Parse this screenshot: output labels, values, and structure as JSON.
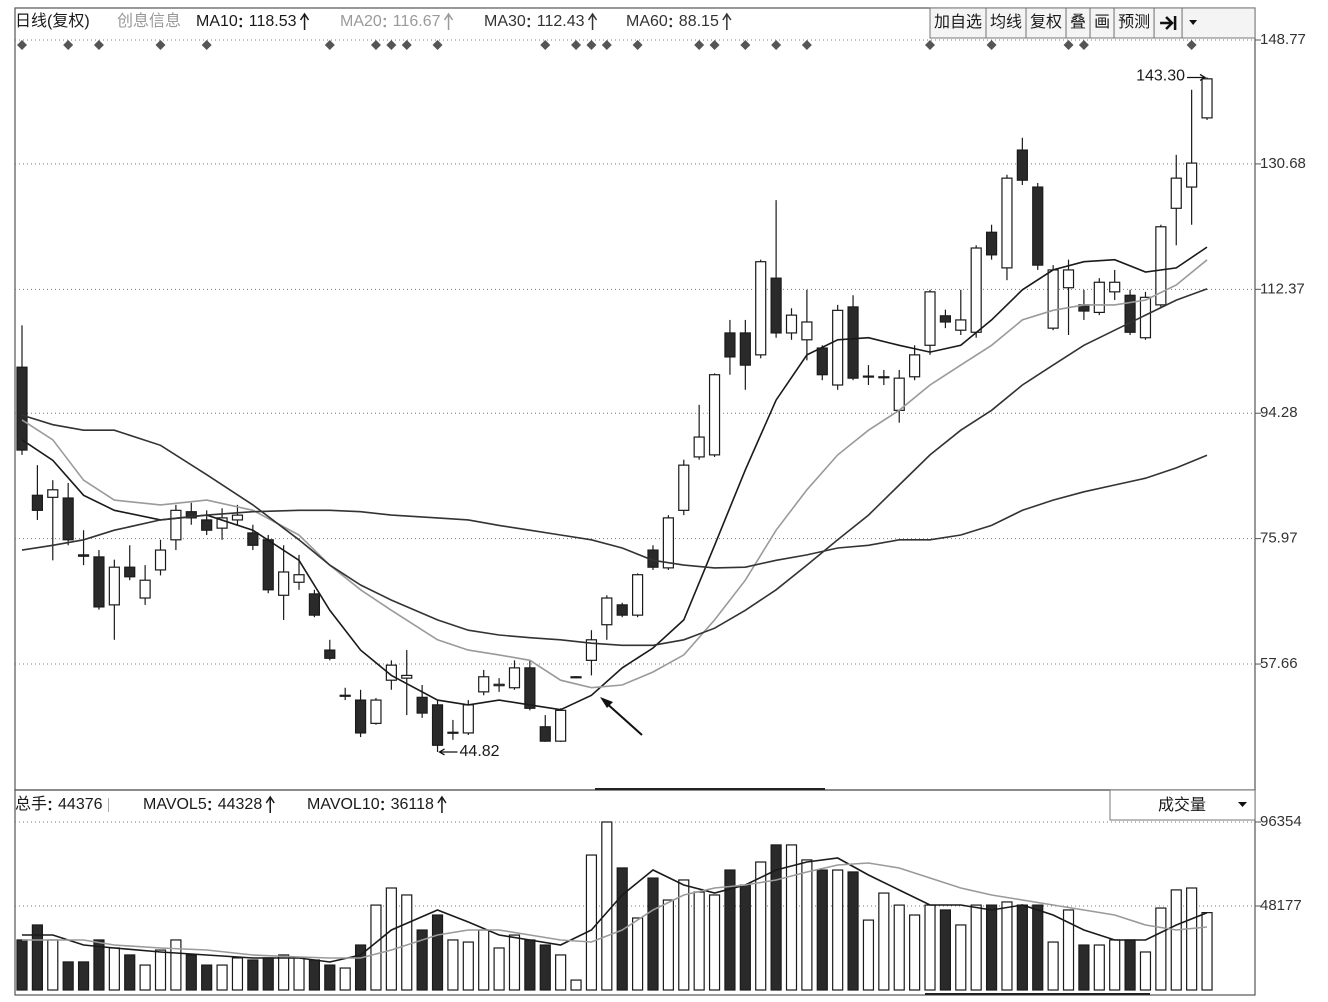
{
  "chart_data": {
    "type": "candlestick",
    "period_label": "日线(复权)",
    "info_label": "创息信息",
    "toolbar": [
      "加自选",
      "均线",
      "复权",
      "叠",
      "画",
      "预测"
    ],
    "open": [
      101.0,
      82.3,
      82.0,
      81.9,
      73.6,
      73.3,
      66.3,
      71.8,
      67.3,
      71.4,
      75.8,
      79.9,
      78.7,
      77.5,
      78.7,
      76.8,
      75.8,
      67.7,
      69.6,
      67.9,
      59.7,
      53.1,
      52.4,
      49.0,
      55.3,
      55.6,
      52.8,
      51.7,
      47.6,
      47.6,
      53.6,
      54.5,
      54.2,
      57.1,
      48.5,
      46.4,
      55.8,
      58.2,
      63.4,
      66.3,
      64.8,
      74.3,
      71.7,
      80.1,
      87.9,
      88.2,
      106.0,
      106.0,
      102.8,
      114.0,
      106.0,
      105.0,
      103.8,
      98.4,
      109.8,
      99.6,
      99.6,
      94.7,
      99.6,
      104.2,
      108.5,
      106.4,
      106.1,
      120.7,
      115.5,
      132.7,
      127.3,
      106.7,
      112.6,
      110.1,
      109.0,
      112.0,
      111.5,
      105.3,
      110.1,
      124.2,
      127.3,
      137.4
    ],
    "high": [
      107.1,
      86.7,
      84.5,
      84.1,
      77.2,
      74.3,
      72.9,
      75.0,
      72.1,
      75.8,
      80.9,
      81.2,
      80.1,
      80.4,
      80.9,
      78.0,
      76.5,
      75.0,
      73.6,
      68.5,
      61.2,
      54.2,
      53.9,
      52.7,
      58.2,
      59.7,
      54.6,
      52.4,
      49.5,
      52.4,
      56.8,
      55.6,
      58.2,
      58.2,
      50.2,
      51.2,
      55.9,
      62.6,
      67.7,
      66.6,
      70.9,
      75.0,
      79.4,
      87.5,
      95.5,
      100.1,
      107.9,
      107.9,
      116.7,
      125.4,
      109.6,
      112.3,
      104.2,
      110.1,
      111.5,
      101.3,
      100.6,
      100.6,
      104.2,
      112.3,
      109.4,
      112.3,
      118.8,
      121.8,
      129.1,
      134.5,
      127.9,
      115.9,
      116.7,
      112.3,
      114.0,
      115.2,
      112.3,
      112.0,
      121.8,
      132.0,
      141.5,
      143.3
    ],
    "low": [
      88.2,
      78.7,
      72.8,
      75.0,
      72.1,
      65.6,
      61.2,
      69.9,
      66.3,
      70.6,
      74.3,
      78.0,
      76.5,
      75.8,
      78.0,
      74.3,
      68.0,
      64.1,
      68.5,
      64.5,
      58.2,
      52.4,
      47.0,
      48.8,
      53.9,
      50.2,
      49.8,
      44.82,
      46.6,
      47.3,
      53.1,
      53.6,
      53.9,
      50.9,
      46.3,
      46.3,
      55.6,
      56.0,
      61.2,
      64.5,
      64.5,
      71.4,
      71.4,
      79.4,
      87.5,
      87.9,
      99.9,
      97.7,
      102.3,
      105.3,
      105.0,
      102.0,
      99.1,
      97.7,
      99.1,
      98.4,
      98.4,
      92.9,
      99.1,
      102.8,
      106.7,
      105.7,
      105.3,
      116.7,
      113.7,
      127.6,
      115.2,
      106.4,
      105.7,
      107.9,
      108.6,
      110.8,
      105.7,
      105.0,
      109.6,
      118.8,
      121.8,
      137.1
    ],
    "close": [
      88.9,
      80.1,
      83.1,
      75.8,
      73.4,
      66.0,
      71.8,
      70.4,
      69.9,
      74.3,
      80.1,
      79.0,
      77.2,
      79.0,
      79.4,
      75.0,
      68.5,
      71.1,
      70.7,
      64.8,
      58.5,
      53.1,
      47.6,
      52.4,
      57.5,
      56.0,
      50.5,
      45.8,
      47.7,
      51.7,
      55.8,
      54.7,
      57.1,
      51.2,
      46.4,
      50.9,
      55.8,
      61.2,
      67.3,
      64.8,
      70.7,
      71.8,
      79.0,
      86.7,
      90.8,
      99.9,
      102.5,
      101.3,
      116.4,
      106.0,
      108.6,
      107.6,
      99.9,
      109.3,
      99.4,
      99.7,
      99.6,
      99.4,
      102.8,
      112.0,
      107.6,
      107.9,
      118.4,
      117.4,
      128.6,
      128.3,
      115.9,
      115.2,
      115.2,
      109.2,
      113.4,
      113.4,
      106.1,
      111.2,
      121.5,
      128.6,
      130.8,
      143.1
    ],
    "extreme_labels": {
      "high": "143.30",
      "low": "44.82"
    },
    "ylim": [
      39.27,
      153.15
    ],
    "yticks": [
      148.77,
      130.68,
      112.37,
      94.28,
      75.97,
      57.66
    ],
    "grid": true,
    "ma_x": [
      0,
      2,
      4,
      6,
      9,
      12,
      15,
      18,
      20,
      22,
      24,
      27,
      29,
      31,
      33,
      35,
      37,
      39,
      41,
      43,
      45,
      47,
      49,
      51,
      53,
      55,
      57,
      59,
      61,
      63,
      65,
      67,
      69,
      71,
      73,
      75,
      77
    ],
    "ma": [
      {
        "name": "MA10",
        "color": "#1a1a1a",
        "values": [
          90.4,
          87.4,
          82.3,
          80.1,
          78.7,
          79.4,
          77.2,
          72.8,
          65.5,
          59.7,
          56.0,
          52.4,
          51.7,
          52.4,
          51.7,
          51.0,
          53.1,
          57.1,
          60.0,
          64.1,
          75.0,
          86.0,
          96.2,
          102.8,
          105.0,
          105.3,
          104.2,
          103.2,
          104.2,
          107.9,
          112.3,
          115.2,
          116.4,
          116.7,
          114.9,
          115.5,
          118.53
        ]
      },
      {
        "name": "MA20",
        "color": "#9a9a9a",
        "values": [
          93.3,
          90.4,
          84.5,
          81.6,
          80.9,
          81.6,
          80.1,
          76.5,
          72.1,
          68.5,
          65.5,
          61.2,
          59.7,
          59.0,
          58.2,
          55.3,
          54.2,
          54.6,
          56.5,
          59.0,
          64.1,
          69.9,
          77.2,
          83.1,
          88.2,
          91.8,
          94.7,
          98.4,
          101.3,
          104.2,
          107.9,
          109.3,
          110.1,
          110.1,
          110.8,
          113.0,
          116.67
        ]
      },
      {
        "name": "MA30",
        "color": "#333333",
        "values": [
          94.0,
          92.6,
          91.8,
          91.8,
          89.6,
          85.3,
          80.9,
          75.8,
          72.1,
          69.2,
          67.0,
          64.1,
          62.6,
          61.9,
          61.5,
          61.2,
          60.7,
          60.4,
          60.4,
          61.2,
          62.9,
          65.5,
          68.5,
          72.1,
          75.8,
          79.4,
          83.8,
          88.2,
          91.8,
          94.7,
          98.4,
          101.3,
          104.2,
          106.4,
          108.6,
          110.8,
          112.43
        ]
      },
      {
        "name": "MA60",
        "color": "#333333",
        "values": [
          74.3,
          75.0,
          75.8,
          77.2,
          78.7,
          79.4,
          79.9,
          80.1,
          80.1,
          79.9,
          79.4,
          79.0,
          78.7,
          77.9,
          77.2,
          76.5,
          75.8,
          74.6,
          72.8,
          72.1,
          71.7,
          71.8,
          72.8,
          73.6,
          74.6,
          75.0,
          75.8,
          75.8,
          76.5,
          77.9,
          80.1,
          81.6,
          82.8,
          83.8,
          84.8,
          86.3,
          88.15
        ]
      }
    ],
    "volume_label": "总手",
    "volume_dropdown": "成交量",
    "volume": [
      28700,
      37300,
      28700,
      16100,
      16100,
      28700,
      24100,
      20100,
      14300,
      22900,
      28700,
      20100,
      14300,
      14300,
      18400,
      17200,
      18400,
      20100,
      18400,
      17200,
      14300,
      12600,
      25800,
      48700,
      58500,
      54500,
      34400,
      43000,
      28700,
      27500,
      34400,
      24100,
      31500,
      28700,
      25800,
      20100,
      5700,
      77400,
      96354,
      70000,
      41300,
      64200,
      51600,
      63100,
      56200,
      54500,
      68800,
      60200,
      73400,
      83200,
      83200,
      74600,
      68800,
      68800,
      67700,
      40100,
      55600,
      48700,
      43000,
      48700,
      45900,
      37300,
      48700,
      48700,
      50500,
      48700,
      48700,
      27500,
      45900,
      25800,
      25800,
      28700,
      28700,
      21800,
      47000,
      57400,
      58500,
      44376
    ],
    "vol_ylim": [
      0,
      114700
    ],
    "vol_yticks": [
      48177,
      96354
    ],
    "volume_ma": [
      {
        "name": "MAVOL5",
        "color": "#1a1a1a",
        "values": [
          31540,
          31540,
          25810,
          24090,
          21790,
          20070,
          18350,
          18350,
          16060,
          20070,
          34410,
          45880,
          39000,
          31540,
          28680,
          25810,
          34410,
          54480,
          68820,
          60220,
          55630,
          60220,
          68820,
          73410,
          75700,
          65950,
          57350,
          48750,
          48750,
          45880,
          48750,
          43010,
          34410,
          28680,
          28680,
          37280,
          44328
        ]
      },
      {
        "name": "MAVOL10",
        "color": "#9a9a9a",
        "values": [
          28680,
          28680,
          28680,
          25810,
          24090,
          22940,
          20070,
          18930,
          18350,
          18350,
          22940,
          31540,
          34410,
          34410,
          31540,
          28680,
          27530,
          34410,
          45880,
          54480,
          58500,
          60220,
          63090,
          67670,
          71690,
          72830,
          69970,
          64230,
          58500,
          54480,
          51620,
          48750,
          45880,
          43010,
          37280,
          34410,
          36118
        ]
      }
    ]
  }
}
